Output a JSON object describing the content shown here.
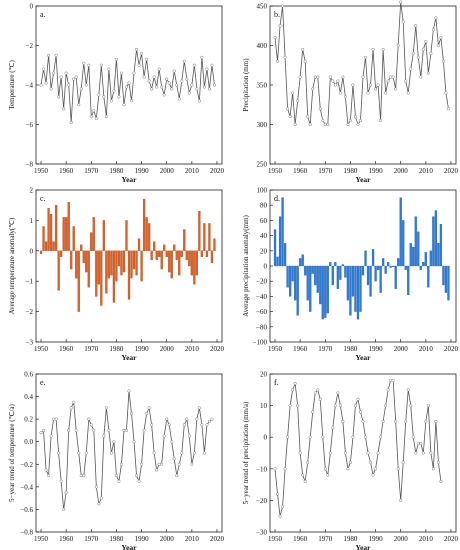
{
  "chart_data": [
    {
      "id": "a",
      "panel_label": "a.",
      "type": "line",
      "xlabel": "Year",
      "ylabel": "Temperature (℃)",
      "xlim": [
        1948,
        2022
      ],
      "ylim": [
        -8,
        0
      ],
      "xticks": [
        1950,
        1960,
        1970,
        1980,
        1990,
        2000,
        2010,
        2020
      ],
      "yticks": [
        -8,
        -6,
        -4,
        -2,
        0
      ],
      "ytick_labels": [
        "−8",
        "−6",
        "−4",
        "−2",
        "0"
      ],
      "line_color": "#555555",
      "x_start": 1950,
      "values": [
        -4.0,
        -3.2,
        -3.9,
        -2.5,
        -4.2,
        -3.4,
        -2.5,
        -4.6,
        -3.6,
        -5.2,
        -3.4,
        -4.0,
        -5.9,
        -3.7,
        -3.6,
        -5.0,
        -4.2,
        -2.9,
        -4.0,
        -3.0,
        -5.6,
        -5.3,
        -5.7,
        -4.5,
        -3.0,
        -4.6,
        -5.6,
        -3.2,
        -4.8,
        -4.3,
        -2.7,
        -4.6,
        -3.4,
        -5.0,
        -4.1,
        -3.9,
        -4.8,
        -3.4,
        -2.2,
        -3.0,
        -2.4,
        -3.6,
        -2.7,
        -3.8,
        -4.2,
        -3.6,
        -4.1,
        -3.2,
        -4.1,
        -4.5,
        -3.7,
        -3.9,
        -4.2,
        -3.3,
        -4.0,
        -4.7,
        -3.8,
        -2.8,
        -3.7,
        -4.4,
        -4.0,
        -3.0,
        -4.2,
        -4.8,
        -2.6,
        -4.1,
        -3.2,
        -4.2,
        -3.0,
        -4.0
      ]
    },
    {
      "id": "b",
      "panel_label": "b.",
      "type": "line",
      "xlabel": "Year",
      "ylabel": "Precipitation (mm)",
      "xlim": [
        1948,
        2022
      ],
      "ylim": [
        250,
        450
      ],
      "xticks": [
        1950,
        1960,
        1970,
        1980,
        1990,
        2000,
        2010,
        2020
      ],
      "yticks": [
        250,
        300,
        350,
        400,
        450
      ],
      "ytick_labels": [
        "250",
        "300",
        "350",
        "400",
        "450"
      ],
      "line_color": "#555555",
      "x_start": 1950,
      "values": [
        410,
        380,
        425,
        450,
        385,
        320,
        310,
        340,
        300,
        330,
        360,
        395,
        380,
        310,
        300,
        345,
        360,
        360,
        320,
        305,
        300,
        300,
        360,
        355,
        350,
        355,
        340,
        360,
        335,
        300,
        305,
        350,
        310,
        300,
        305,
        360,
        385,
        340,
        350,
        395,
        345,
        350,
        305,
        395,
        340,
        355,
        360,
        360,
        345,
        400,
        455,
        430,
        355,
        340,
        370,
        390,
        425,
        385,
        360,
        395,
        405,
        365,
        390,
        420,
        435,
        400,
        410,
        380,
        340,
        320
      ]
    },
    {
      "id": "c",
      "panel_label": "c.",
      "type": "bar",
      "xlabel": "Year",
      "ylabel": "Average temperature anomaly(℃)",
      "xlim": [
        1948,
        2022
      ],
      "ylim": [
        -3,
        2
      ],
      "xticks": [
        1950,
        1960,
        1970,
        1980,
        1990,
        2000,
        2010,
        2020
      ],
      "yticks": [
        -3,
        -2,
        -1,
        0,
        1,
        2
      ],
      "ytick_labels": [
        "−3",
        "−2",
        "−1",
        "0",
        "1",
        "2"
      ],
      "bar_color": "#d8622a",
      "bar_edge": "#b04a18",
      "x_start": 1950,
      "values": [
        -0.1,
        0.8,
        0.3,
        1.4,
        1.2,
        0.3,
        1.5,
        -1.3,
        -0.2,
        1.1,
        1.1,
        1.6,
        -0.6,
        0.8,
        -0.9,
        -2.0,
        0.2,
        -0.4,
        -0.7,
        -1.2,
        0.6,
        1.1,
        -1.5,
        -1.1,
        -1.8,
        1.0,
        -1.4,
        -0.9,
        -0.8,
        -1.7,
        -1.0,
        -0.5,
        -0.8,
        -0.7,
        1.0,
        -1.6,
        -0.9,
        -0.6,
        -0.8,
        0.4,
        -1.0,
        1.7,
        1.1,
        0.9,
        -0.3,
        0.3,
        -0.3,
        -0.2,
        -0.6,
        0.2,
        -0.2,
        -0.7,
        -0.9,
        0.2,
        -0.3,
        -0.8,
        -0.2,
        0.7,
        -0.3,
        -0.5,
        -0.8,
        -1.1,
        -0.8,
        1.3,
        -0.2,
        0.9,
        -0.2,
        0.9,
        -0.4,
        0.4
      ]
    },
    {
      "id": "d",
      "panel_label": "d.",
      "type": "bar",
      "xlabel": "Year",
      "ylabel": "Average precipitation anomaly(mm)",
      "xlim": [
        1948,
        2022
      ],
      "ylim": [
        -100,
        100
      ],
      "xticks": [
        1950,
        1960,
        1970,
        1980,
        1990,
        2000,
        2010,
        2020
      ],
      "yticks": [
        -100,
        -80,
        -60,
        -40,
        -20,
        0,
        20,
        40,
        60,
        80,
        100
      ],
      "ytick_labels": [
        "−100",
        "−80",
        "−60",
        "−40",
        "−20",
        "0",
        "20",
        "40",
        "60",
        "80",
        "100"
      ],
      "bar_color": "#2f7bd6",
      "bar_edge": "#1f5fae",
      "x_start": 1950,
      "values": [
        48,
        12,
        65,
        90,
        30,
        -28,
        -40,
        -20,
        -45,
        -65,
        10,
        15,
        -12,
        -45,
        -60,
        -10,
        -25,
        -35,
        -50,
        -70,
        -68,
        -62,
        5,
        -25,
        5,
        -30,
        -18,
        2,
        -15,
        -45,
        -65,
        -40,
        -60,
        -70,
        -60,
        -12,
        20,
        -25,
        -40,
        22,
        -20,
        -5,
        -35,
        10,
        -10,
        5,
        -2,
        -1,
        -30,
        10,
        90,
        60,
        -5,
        -38,
        30,
        25,
        65,
        45,
        -5,
        5,
        18,
        -28,
        20,
        65,
        73,
        30,
        55,
        -25,
        -35,
        -45
      ]
    },
    {
      "id": "e",
      "panel_label": "e.",
      "type": "line",
      "xlabel": "Year",
      "ylabel": "5−year trend of temperature (℃/a)",
      "xlim": [
        1948,
        2022
      ],
      "ylim": [
        -0.8,
        0.6
      ],
      "xticks": [
        1950,
        1960,
        1970,
        1980,
        1990,
        2000,
        2010,
        2020
      ],
      "yticks": [
        -0.8,
        -0.6,
        -0.4,
        -0.2,
        0.0,
        0.2,
        0.4,
        0.6
      ],
      "ytick_labels": [
        "−0.8",
        "−0.6",
        "−0.4",
        "−0.2",
        "0.0",
        "0.2",
        "0.4",
        "0.6"
      ],
      "line_color": "#555555",
      "x_start": 1950,
      "values": [
        0.08,
        0.1,
        -0.25,
        -0.3,
        0.05,
        0.2,
        0.2,
        -0.1,
        -0.35,
        -0.6,
        -0.45,
        0.1,
        0.3,
        0.35,
        0.1,
        -0.1,
        -0.3,
        -0.3,
        -0.1,
        0.2,
        0.15,
        0.1,
        -0.4,
        -0.55,
        -0.5,
        0.05,
        0.3,
        0.1,
        -0.1,
        0.0,
        -0.3,
        -0.35,
        -0.2,
        0.1,
        0.1,
        0.45,
        0.25,
        0.0,
        -0.3,
        -0.35,
        -0.2,
        0.1,
        0.25,
        0.3,
        0.15,
        -0.1,
        -0.25,
        -0.2,
        -0.2,
        0.05,
        0.2,
        0.15,
        0.0,
        -0.15,
        -0.3,
        -0.2,
        -0.1,
        0.15,
        0.2,
        0.05,
        -0.2,
        -0.1,
        0.2,
        0.3,
        0.15,
        -0.1,
        0.15,
        0.18,
        0.2
      ]
    },
    {
      "id": "f",
      "panel_label": "f.",
      "type": "line",
      "xlabel": "Year",
      "ylabel": "5−year trend of precipitation (mm/a)",
      "xlim": [
        1948,
        2022
      ],
      "ylim": [
        -30,
        20
      ],
      "xticks": [
        1950,
        1960,
        1970,
        1980,
        1990,
        2000,
        2010,
        2020
      ],
      "yticks": [
        -30,
        -20,
        -10,
        0,
        10,
        20
      ],
      "ytick_labels": [
        "−30",
        "−20",
        "−10",
        "0",
        "10",
        "20"
      ],
      "line_color": "#555555",
      "x_start": 1950,
      "values": [
        -10,
        -18,
        -25,
        -22,
        -10,
        0,
        10,
        15,
        17,
        10,
        -5,
        -12,
        -14,
        -8,
        0,
        8,
        14,
        15,
        12,
        0,
        -10,
        -12,
        -5,
        3,
        10,
        14,
        10,
        5,
        -5,
        -10,
        -8,
        0,
        10,
        12,
        8,
        5,
        0,
        -5,
        -8,
        -12,
        -10,
        -5,
        0,
        5,
        10,
        15,
        18,
        18,
        5,
        -10,
        -20,
        -8,
        5,
        15,
        10,
        0,
        -5,
        -2,
        -2,
        -5,
        5,
        10,
        -5,
        -10,
        5,
        -8,
        -14
      ]
    }
  ]
}
